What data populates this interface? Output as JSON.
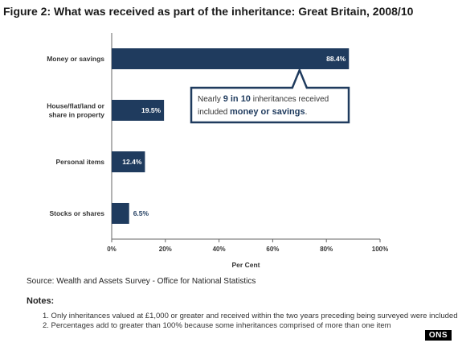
{
  "chart_data": {
    "type": "bar",
    "orientation": "horizontal",
    "title": "Figure 2: What was received as part of the inheritance: Great Britain, 2008/10",
    "categories": [
      "Money or savings",
      "House/flat/land or share in property",
      "Personal items",
      "Stocks or shares"
    ],
    "values": [
      88.4,
      19.5,
      12.4,
      6.5
    ],
    "data_labels": [
      "88.4%",
      "19.5%",
      "12.4%",
      "6.5%"
    ],
    "xlabel": "Per Cent",
    "ylabel": "",
    "xlim": [
      0,
      100
    ],
    "xticks": [
      "0%",
      "20%",
      "40%",
      "60%",
      "80%",
      "100%"
    ],
    "grid": false,
    "bar_color": "#1f3b5e",
    "annotation": {
      "line1_prefix": "Nearly ",
      "line1_bold": "9 in 10",
      "line1_suffix": " inheritances received",
      "line2_prefix": "included ",
      "line2_bold": "money or savings",
      "line2_suffix": ".",
      "border_color": "#1f3b5e",
      "highlight_color": "#1f3b5e"
    }
  },
  "source": "Source: Wealth and Assets Survey - Office for National Statistics",
  "notes": {
    "heading": "Notes:",
    "items": [
      "1.  Only inheritances valued at £1,000 or greater and received within the two years preceding being surveyed were included",
      "2.  Percentages add to greater than 100% because some inheritances comprised of more than one item"
    ]
  },
  "watermark": "ONS"
}
